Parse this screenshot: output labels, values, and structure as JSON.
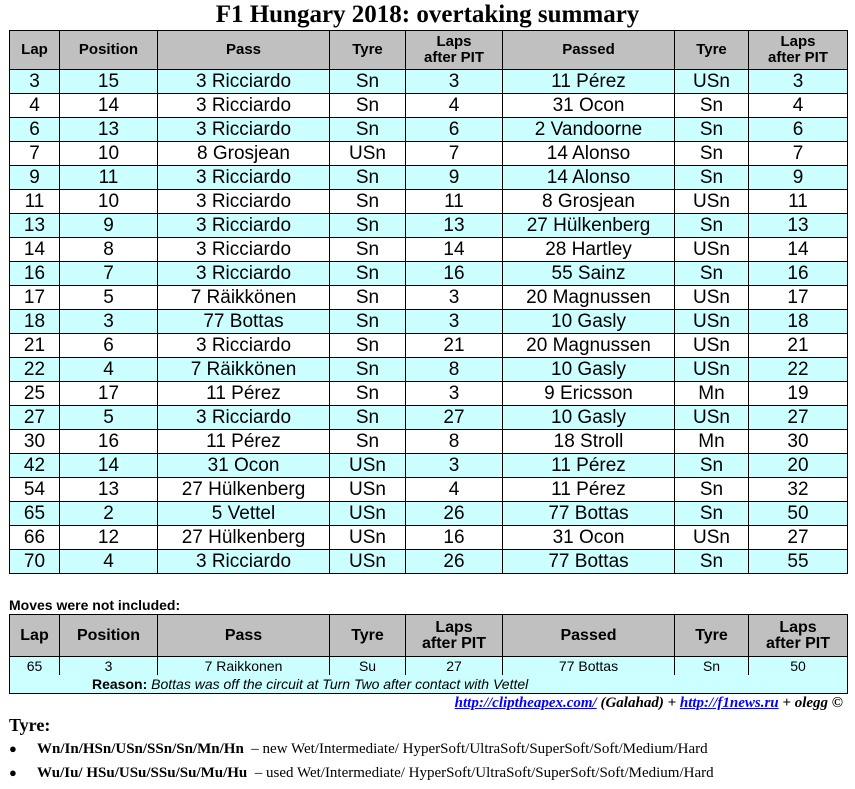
{
  "title": "F1 Hungary 2018: overtaking summary",
  "headers": {
    "lap": "Lap",
    "position": "Position",
    "pass": "Pass",
    "tyre": "Tyre",
    "laps_after_pit_1": "Laps",
    "laps_after_pit_2": "after PIT",
    "passed": "Passed",
    "tyre2": "Tyre",
    "laps_after_pit2_1": "Laps",
    "laps_after_pit2_2": "after PIT"
  },
  "rows": [
    {
      "lap": "3",
      "position": "15",
      "pass": "3 Ricciardo",
      "tyre": "Sn",
      "laps": "3",
      "passed": "11 Pérez",
      "tyre2": "USn",
      "laps2": "3"
    },
    {
      "lap": "4",
      "position": "14",
      "pass": "3 Ricciardo",
      "tyre": "Sn",
      "laps": "4",
      "passed": "31 Ocon",
      "tyre2": "Sn",
      "laps2": "4"
    },
    {
      "lap": "6",
      "position": "13",
      "pass": "3 Ricciardo",
      "tyre": "Sn",
      "laps": "6",
      "passed": "2 Vandoorne",
      "tyre2": "Sn",
      "laps2": "6"
    },
    {
      "lap": "7",
      "position": "10",
      "pass": "8 Grosjean",
      "tyre": "USn",
      "laps": "7",
      "passed": "14 Alonso",
      "tyre2": "Sn",
      "laps2": "7"
    },
    {
      "lap": "9",
      "position": "11",
      "pass": "3 Ricciardo",
      "tyre": "Sn",
      "laps": "9",
      "passed": "14 Alonso",
      "tyre2": "Sn",
      "laps2": "9"
    },
    {
      "lap": "11",
      "position": "10",
      "pass": "3 Ricciardo",
      "tyre": "Sn",
      "laps": "11",
      "passed": "8 Grosjean",
      "tyre2": "USn",
      "laps2": "11"
    },
    {
      "lap": "13",
      "position": "9",
      "pass": "3 Ricciardo",
      "tyre": "Sn",
      "laps": "13",
      "passed": "27 Hülkenberg",
      "tyre2": "Sn",
      "laps2": "13"
    },
    {
      "lap": "14",
      "position": "8",
      "pass": "3 Ricciardo",
      "tyre": "Sn",
      "laps": "14",
      "passed": "28 Hartley",
      "tyre2": "USn",
      "laps2": "14"
    },
    {
      "lap": "16",
      "position": "7",
      "pass": "3 Ricciardo",
      "tyre": "Sn",
      "laps": "16",
      "passed": "55 Sainz",
      "tyre2": "Sn",
      "laps2": "16"
    },
    {
      "lap": "17",
      "position": "5",
      "pass": "7 Räikkönen",
      "tyre": "Sn",
      "laps": "3",
      "passed": "20 Magnussen",
      "tyre2": "USn",
      "laps2": "17"
    },
    {
      "lap": "18",
      "position": "3",
      "pass": "77 Bottas",
      "tyre": "Sn",
      "laps": "3",
      "passed": "10 Gasly",
      "tyre2": "USn",
      "laps2": "18"
    },
    {
      "lap": "21",
      "position": "6",
      "pass": "3 Ricciardo",
      "tyre": "Sn",
      "laps": "21",
      "passed": "20 Magnussen",
      "tyre2": "USn",
      "laps2": "21"
    },
    {
      "lap": "22",
      "position": "4",
      "pass": "7 Räikkönen",
      "tyre": "Sn",
      "laps": "8",
      "passed": "10 Gasly",
      "tyre2": "USn",
      "laps2": "22"
    },
    {
      "lap": "25",
      "position": "17",
      "pass": "11 Pérez",
      "tyre": "Sn",
      "laps": "3",
      "passed": "9 Ericsson",
      "tyre2": "Mn",
      "laps2": "19"
    },
    {
      "lap": "27",
      "position": "5",
      "pass": "3 Ricciardo",
      "tyre": "Sn",
      "laps": "27",
      "passed": "10 Gasly",
      "tyre2": "USn",
      "laps2": "27"
    },
    {
      "lap": "30",
      "position": "16",
      "pass": "11 Pérez",
      "tyre": "Sn",
      "laps": "8",
      "passed": "18 Stroll",
      "tyre2": "Mn",
      "laps2": "30"
    },
    {
      "lap": "42",
      "position": "14",
      "pass": "31 Ocon",
      "tyre": "USn",
      "laps": "3",
      "passed": "11 Pérez",
      "tyre2": "Sn",
      "laps2": "20"
    },
    {
      "lap": "54",
      "position": "13",
      "pass": "27 Hülkenberg",
      "tyre": "USn",
      "laps": "4",
      "passed": "11 Pérez",
      "tyre2": "Sn",
      "laps2": "32"
    },
    {
      "lap": "65",
      "position": "2",
      "pass": "5 Vettel",
      "tyre": "USn",
      "laps": "26",
      "passed": "77 Bottas",
      "tyre2": "Sn",
      "laps2": "50"
    },
    {
      "lap": "66",
      "position": "12",
      "pass": "27 Hülkenberg",
      "tyre": "USn",
      "laps": "16",
      "passed": "31 Ocon",
      "tyre2": "USn",
      "laps2": "27"
    },
    {
      "lap": "70",
      "position": "4",
      "pass": "3 Ricciardo",
      "tyre": "USn",
      "laps": "26",
      "passed": "77 Bottas",
      "tyre2": "Sn",
      "laps2": "55"
    }
  ],
  "excluded": {
    "heading": "Moves were not included:",
    "row": {
      "lap": "65",
      "position": "3",
      "pass": "7 Raikkonen",
      "tyre": "Su",
      "laps": "27",
      "passed": "77 Bottas",
      "tyre2": "Sn",
      "laps2": "50"
    },
    "reason_label": "Reason:",
    "reason_text": "Bottas was off the circuit at Turn Two after contact with Vettel"
  },
  "credits": {
    "link1": "http://cliptheapex.com/",
    "by1": "(Galahad) +",
    "link2": "http://f1news.ru",
    "by2": "+ olegg ©"
  },
  "tyre_legend": {
    "heading": "Tyre:",
    "new_codes": "Wn/In/HSn/USn/SSn/Sn/Mn/Hn",
    "new_desc": "– new Wet/Intermediate/ HyperSoft/UltraSoft/SuperSoft/Soft/Medium/Hard",
    "used_codes": "Wu/Iu/ HSu/USu/SSu/Su/Mu/Hu",
    "used_desc": "– used Wet/Intermediate/ HyperSoft/UltraSoft/SuperSoft/Soft/Medium/Hard",
    "bullet": "●"
  }
}
